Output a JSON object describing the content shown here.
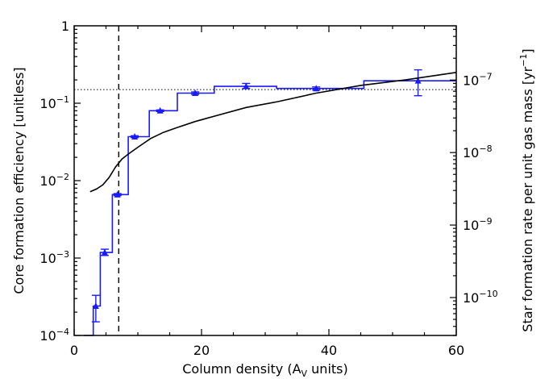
{
  "chart_data": {
    "type": "line",
    "title": "",
    "xlabel": "Column density (A",
    "xlabel_sub": "V",
    "xlabel_tail": " units)",
    "ylabel_left": "Core formation efficiency [unitless]",
    "ylabel_right": "Star formation rate per unit gas mass [yr",
    "ylabel_right_sup": "−1",
    "ylabel_right_tail": "]",
    "xlim": [
      0,
      60
    ],
    "ylim_left": [
      0.0001,
      1
    ],
    "ylim_left_scale": "log",
    "ylim_right": [
      3e-11,
      5.6e-07
    ],
    "ylim_right_scale": "log",
    "x_ticks": [
      "0",
      "20",
      "40",
      "60"
    ],
    "x_tick_values": [
      0,
      20,
      40,
      60
    ],
    "left_tick_labels": [
      {
        "base": "10",
        "exp": "−4",
        "value": 0.0001
      },
      {
        "base": "10",
        "exp": "−3",
        "value": 0.001
      },
      {
        "base": "10",
        "exp": "−2",
        "value": 0.01
      },
      {
        "base": "10",
        "exp": "−1",
        "value": 0.1
      },
      {
        "base": "1",
        "exp": "",
        "value": 1
      }
    ],
    "right_tick_labels": [
      {
        "base": "10",
        "exp": "−10",
        "value": 1e-10
      },
      {
        "base": "10",
        "exp": "−9",
        "value": 1e-09
      },
      {
        "base": "10",
        "exp": "−8",
        "value": 1e-08
      },
      {
        "base": "10",
        "exp": "−7",
        "value": 1e-07
      }
    ],
    "series": [
      {
        "kind": "step",
        "axis": "left",
        "color": "#1a1aff",
        "x_edges": [
          1.5,
          3.0,
          4.1,
          6.0,
          8.5,
          11.8,
          16.2,
          22.0,
          31.8,
          45.5,
          60.0
        ],
        "values": [
          0.0001,
          0.00024,
          0.00118,
          0.0066,
          0.037,
          0.08,
          0.135,
          0.165,
          0.155,
          0.195
        ],
        "points": [
          {
            "x": 3.4,
            "y": 0.00024,
            "err_low": 0.00015,
            "err_high": 0.00033
          },
          {
            "x": 4.8,
            "y": 0.00118,
            "err_low": 0.00108,
            "err_high": 0.0013
          },
          {
            "x": 6.8,
            "y": 0.0066,
            "err_low": 0.0064,
            "err_high": 0.0068
          },
          {
            "x": 9.5,
            "y": 0.037,
            "err_low": 0.036,
            "err_high": 0.038
          },
          {
            "x": 13.5,
            "y": 0.08,
            "err_low": 0.078,
            "err_high": 0.082
          },
          {
            "x": 19.0,
            "y": 0.135,
            "err_low": 0.13,
            "err_high": 0.14
          },
          {
            "x": 27.0,
            "y": 0.165,
            "err_low": 0.155,
            "err_high": 0.18
          },
          {
            "x": 38.0,
            "y": 0.155,
            "err_low": 0.148,
            "err_high": 0.162
          },
          {
            "x": 54.0,
            "y": 0.195,
            "err_low": 0.125,
            "err_high": 0.27
          }
        ]
      },
      {
        "kind": "line",
        "axis": "left",
        "color": "#000000",
        "x": [
          2.5,
          3.5,
          4.5,
          5.5,
          6.5,
          7.5,
          8.5,
          10,
          12,
          14,
          16,
          19,
          22,
          27,
          32,
          38,
          45,
          52,
          60
        ],
        "y": [
          0.0072,
          0.0078,
          0.0088,
          0.011,
          0.015,
          0.019,
          0.022,
          0.027,
          0.035,
          0.042,
          0.048,
          0.058,
          0.068,
          0.088,
          0.105,
          0.135,
          0.17,
          0.2,
          0.25
        ]
      }
    ],
    "reference_lines": [
      {
        "orientation": "vertical",
        "axis": "x",
        "value": 7,
        "style": "dashed",
        "color": "#000000"
      },
      {
        "orientation": "horizontal",
        "axis": "left",
        "value": 0.15,
        "style": "dotted",
        "color": "#000000"
      }
    ],
    "grid": false,
    "legend": "none"
  }
}
